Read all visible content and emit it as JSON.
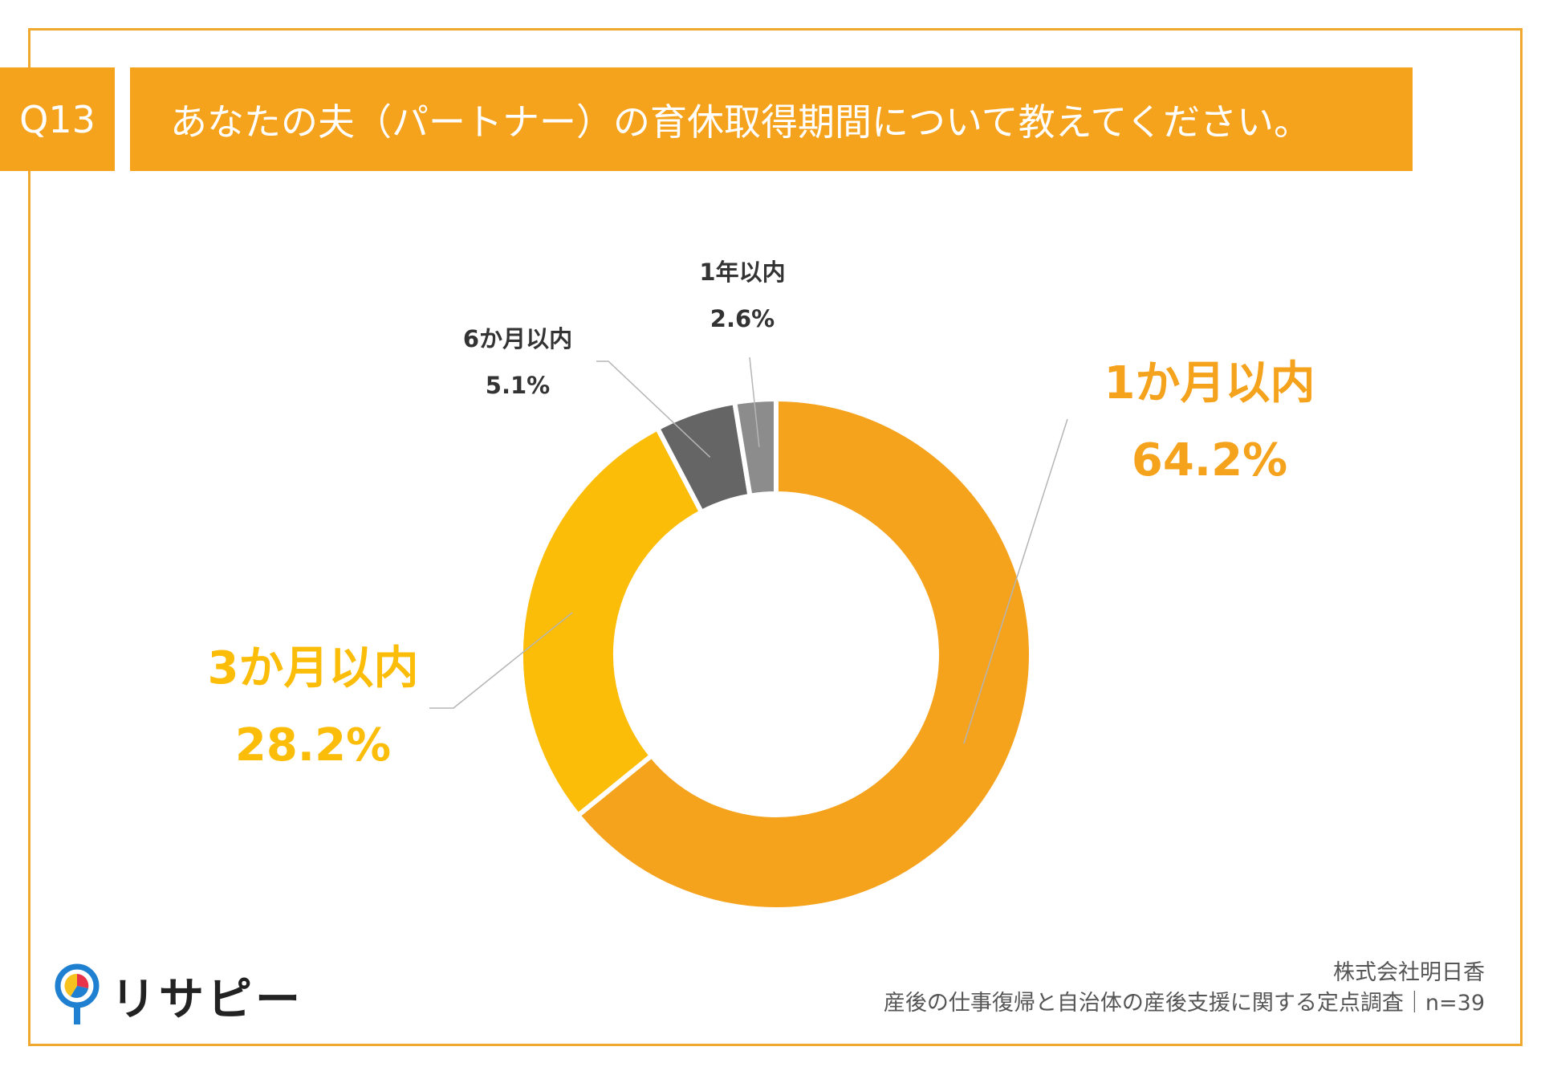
{
  "header": {
    "question_no": "Q13",
    "question": "あなたの夫（パートナー）の育休取得期間について教えてください。"
  },
  "chart_data": {
    "type": "pie",
    "donut": true,
    "title": "あなたの夫（パートナー）の育休取得期間について教えてください。",
    "sample_size": "n=39",
    "slices": [
      {
        "label": "1か月以内",
        "value": 64.2,
        "value_label": "64.2%",
        "color": "#f5a21c"
      },
      {
        "label": "3か月以内",
        "value": 28.2,
        "value_label": "28.2%",
        "color": "#fbbd08"
      },
      {
        "label": "6か月以内",
        "value": 5.1,
        "value_label": "5.1%",
        "color": "#656565"
      },
      {
        "label": "1年以内",
        "value": 2.6,
        "value_label": "2.6%",
        "color": "#8c8c8c"
      }
    ]
  },
  "logo": {
    "text": "リサピー",
    "icon": "pin-pie-icon"
  },
  "footer": {
    "company": "株式会社明日香",
    "survey": "産後の仕事復帰と自治体の産後支援に関する定点調査｜n=39"
  }
}
